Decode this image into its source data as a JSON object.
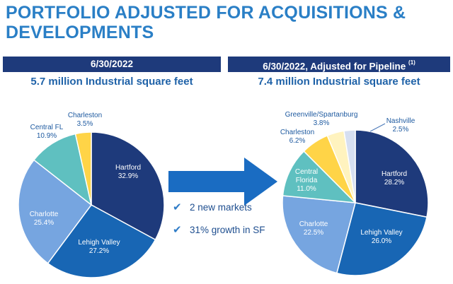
{
  "title": "PORTFOLIO ADJUSTED FOR ACQUISITIONS & DEVELOPMENTS",
  "left": {
    "banner": "6/30/2022",
    "subtitle": "5.7 million Industrial square feet"
  },
  "right": {
    "banner": "6/30/2022, Adjusted for Pipeline",
    "banner_note": "(1)",
    "subtitle": "7.4 million Industrial square feet"
  },
  "bullets": [
    "2 new markets",
    "31% growth in SF"
  ],
  "icons": {
    "check": "check-icon",
    "arrow": "arrow-right-icon"
  },
  "colors": {
    "Hartford": "#1e3a7b",
    "Lehigh Valley": "#1866b4",
    "Charlotte": "#76a5e0",
    "Central FL": "#5fc0c0",
    "Central Florida": "#5fc0c0",
    "Charleston": "#ffd447",
    "Greenville/Spartanburg": "#fff3bf",
    "Nashville": "#d6dff1",
    "arrow": "#1a6cc2"
  },
  "chart_data": [
    {
      "type": "pie",
      "title": "6/30/2022",
      "categories": [
        "Hartford",
        "Lehigh Valley",
        "Charlotte",
        "Central FL",
        "Charleston"
      ],
      "values": [
        32.9,
        27.2,
        25.4,
        10.9,
        3.5
      ],
      "labels": [
        "32.9%",
        "27.2%",
        "25.4%",
        "10.9%",
        "3.5%"
      ]
    },
    {
      "type": "pie",
      "title": "6/30/2022, Adjusted for Pipeline",
      "categories": [
        "Hartford",
        "Lehigh Valley",
        "Charlotte",
        "Central Florida",
        "Charleston",
        "Greenville/Spartanburg",
        "Nashville"
      ],
      "values": [
        28.2,
        26.0,
        22.5,
        11.0,
        6.2,
        3.8,
        2.5
      ],
      "labels": [
        "28.2%",
        "26.0%",
        "22.5%",
        "11.0%",
        "6.2%",
        "3.8%",
        "2.5%"
      ]
    }
  ]
}
